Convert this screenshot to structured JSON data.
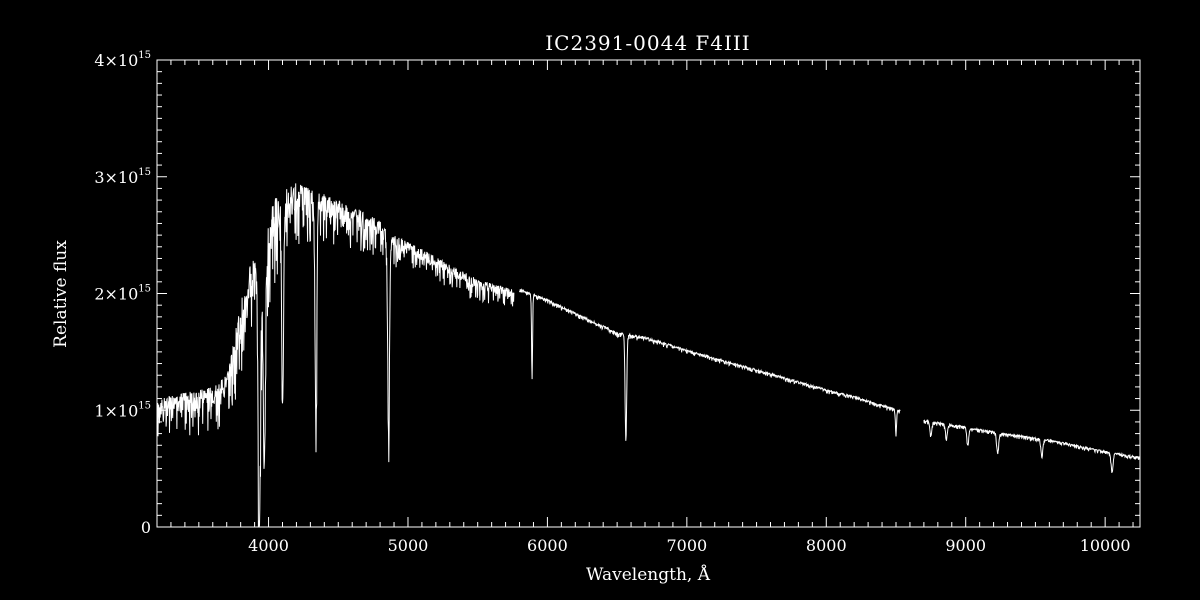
{
  "chart_data": {
    "type": "line",
    "title": "IC2391-0044   F4III",
    "xlabel": "Wavelength, Å",
    "ylabel": "Relative flux",
    "xlim": [
      3200,
      10250
    ],
    "ylim": [
      0,
      4000000000000000.0
    ],
    "x_ticks": [
      4000,
      5000,
      6000,
      7000,
      8000,
      9000,
      10000
    ],
    "x_tick_labels": [
      "4000",
      "5000",
      "6000",
      "7000",
      "8000",
      "9000",
      "10000"
    ],
    "y_ticks": [
      0,
      1000000000000000.0,
      2000000000000000.0,
      3000000000000000.0,
      4000000000000000.0
    ],
    "y_tick_labels": [
      {
        "base": "0",
        "exp": ""
      },
      {
        "base": "1×10",
        "exp": "15"
      },
      {
        "base": "2×10",
        "exp": "15"
      },
      {
        "base": "3×10",
        "exp": "15"
      },
      {
        "base": "4×10",
        "exp": "15"
      }
    ],
    "grid": false,
    "colors": {
      "background": "#000000",
      "foreground": "#ffffff"
    },
    "series": [
      {
        "segments": [
          {
            "continuum": [
              [
                3200,
                1100000000000000.0
              ],
              [
                3400,
                1150000000000000.0
              ],
              [
                3600,
                1200000000000000.0
              ],
              [
                3700,
                1300000000000000.0
              ],
              [
                3780,
                1800000000000000.0
              ],
              [
                3850,
                2200000000000000.0
              ],
              [
                3950,
                2400000000000000.0
              ],
              [
                4050,
                2850000000000000.0
              ],
              [
                4200,
                2950000000000000.0
              ],
              [
                4400,
                2850000000000000.0
              ],
              [
                4600,
                2750000000000000.0
              ],
              [
                4800,
                2620000000000000.0
              ],
              [
                4900,
                2500000000000000.0
              ],
              [
                5100,
                2380000000000000.0
              ],
              [
                5300,
                2250000000000000.0
              ],
              [
                5500,
                2120000000000000.0
              ],
              [
                5760,
                2030000000000000.0
              ]
            ],
            "noise": [
              [
                3200,
                450000000000000.0
              ],
              [
                3700,
                600000000000000.0
              ],
              [
                3800,
                1000000000000000.0
              ],
              [
                4000,
                1100000000000000.0
              ],
              [
                4300,
                700000000000000.0
              ],
              [
                4600,
                500000000000000.0
              ],
              [
                4850,
                450000000000000.0
              ],
              [
                5000,
                350000000000000.0
              ],
              [
                5400,
                280000000000000.0
              ],
              [
                5760,
                250000000000000.0
              ]
            ],
            "lines": [
              {
                "x": 3934,
                "depth": 2200000000000000.0,
                "width": 12
              },
              {
                "x": 3969,
                "depth": 1800000000000000.0,
                "width": 12
              },
              {
                "x": 4101,
                "depth": 1800000000000000.0,
                "width": 9
              },
              {
                "x": 4340,
                "depth": 1900000000000000.0,
                "width": 9
              },
              {
                "x": 4861,
                "depth": 1750000000000000.0,
                "width": 9
              }
            ]
          },
          {
            "continuum": [
              [
                5800,
                2040000000000000.0
              ],
              [
                6000,
                1950000000000000.0
              ],
              [
                6300,
                1780000000000000.0
              ],
              [
                6500,
                1670000000000000.0
              ],
              [
                6700,
                1630000000000000.0
              ],
              [
                7000,
                1520000000000000.0
              ],
              [
                7500,
                1350000000000000.0
              ],
              [
                8000,
                1180000000000000.0
              ],
              [
                8200,
                1120000000000000.0
              ],
              [
                8530,
                1000000000000000.0
              ]
            ],
            "noise": [
              [
                5800,
                50000000000000.0
              ],
              [
                6500,
                60000000000000.0
              ],
              [
                7500,
                50000000000000.0
              ],
              [
                8530,
                50000000000000.0
              ]
            ],
            "lines": [
              {
                "x": 5890,
                "depth": 720000000000000.0,
                "width": 5
              },
              {
                "x": 6563,
                "depth": 920000000000000.0,
                "width": 8
              },
              {
                "x": 8500,
                "depth": 200000000000000.0,
                "width": 6
              }
            ]
          },
          {
            "continuum": [
              [
                8700,
                920000000000000.0
              ],
              [
                9000,
                860000000000000.0
              ],
              [
                9300,
                800000000000000.0
              ],
              [
                9600,
                750000000000000.0
              ],
              [
                10000,
                650000000000000.0
              ],
              [
                10250,
                600000000000000.0
              ]
            ],
            "noise": [
              [
                8700,
                50000000000000.0
              ],
              [
                10250,
                40000000000000.0
              ]
            ],
            "lines": [
              {
                "x": 8750,
                "depth": 120000000000000.0,
                "width": 10
              },
              {
                "x": 8862,
                "depth": 120000000000000.0,
                "width": 10
              },
              {
                "x": 9015,
                "depth": 150000000000000.0,
                "width": 10
              },
              {
                "x": 9229,
                "depth": 170000000000000.0,
                "width": 10
              },
              {
                "x": 9546,
                "depth": 150000000000000.0,
                "width": 10
              },
              {
                "x": 10050,
                "depth": 160000000000000.0,
                "width": 10
              }
            ]
          }
        ]
      }
    ]
  }
}
